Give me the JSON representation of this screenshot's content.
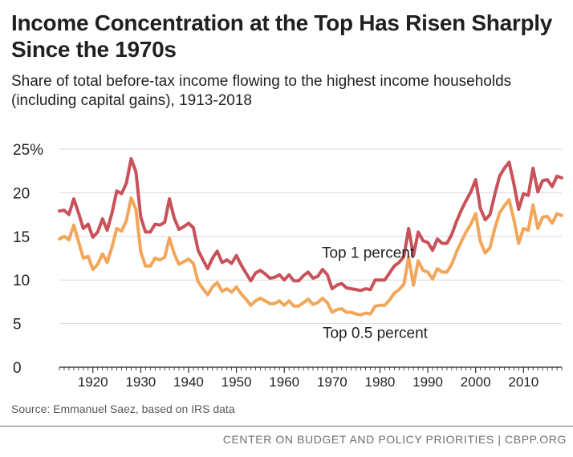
{
  "title": "Income Concentration at the Top Has Risen Sharply Since the 1970s",
  "subtitle": "Share of total before-tax income flowing to the highest income households (including capital gains), 1913-2018",
  "source": "Source: Emmanuel Saez, based on IRS data",
  "footer": "CENTER ON BUDGET AND POLICY PRIORITIES | CBPP.ORG",
  "chart_data": {
    "type": "line",
    "title": "",
    "xlabel": "",
    "ylabel": "",
    "xlim": [
      1913,
      2018
    ],
    "ylim": [
      0,
      25
    ],
    "y_ticks": [
      0,
      5,
      10,
      15,
      20,
      25
    ],
    "y_tick_labels": [
      "0",
      "5",
      "10",
      "15",
      "20",
      "25%"
    ],
    "x_ticks": [
      1920,
      1930,
      1940,
      1950,
      1960,
      1970,
      1980,
      1990,
      2000,
      2010
    ],
    "x_tick_labels": [
      "1920",
      "1930",
      "1940",
      "1950",
      "1960",
      "1970",
      "1980",
      "1990",
      "2000",
      "2010"
    ],
    "grid": true,
    "colors": {
      "top1": "#c8525a",
      "top05": "#f2a65a",
      "grid": "#d9d9d9",
      "axis": "#231f20"
    },
    "x": [
      1913,
      1914,
      1915,
      1916,
      1917,
      1918,
      1919,
      1920,
      1921,
      1922,
      1923,
      1924,
      1925,
      1926,
      1927,
      1928,
      1929,
      1930,
      1931,
      1932,
      1933,
      1934,
      1935,
      1936,
      1937,
      1938,
      1939,
      1940,
      1941,
      1942,
      1943,
      1944,
      1945,
      1946,
      1947,
      1948,
      1949,
      1950,
      1951,
      1952,
      1953,
      1954,
      1955,
      1956,
      1957,
      1958,
      1959,
      1960,
      1961,
      1962,
      1963,
      1964,
      1965,
      1966,
      1967,
      1968,
      1969,
      1970,
      1971,
      1972,
      1973,
      1974,
      1975,
      1976,
      1977,
      1978,
      1979,
      1980,
      1981,
      1982,
      1983,
      1984,
      1985,
      1986,
      1987,
      1988,
      1989,
      1990,
      1991,
      1992,
      1993,
      1994,
      1995,
      1996,
      1997,
      1998,
      1999,
      2000,
      2001,
      2002,
      2003,
      2004,
      2005,
      2006,
      2007,
      2008,
      2009,
      2010,
      2011,
      2012,
      2013,
      2014,
      2015,
      2016,
      2017,
      2018
    ],
    "series": [
      {
        "name": "Top 1 percent",
        "label": "Top 1 percent",
        "values": [
          17.9,
          18.0,
          17.5,
          19.3,
          17.7,
          15.9,
          16.4,
          14.9,
          15.5,
          17.0,
          15.7,
          17.7,
          20.2,
          19.9,
          21.1,
          23.9,
          22.4,
          17.2,
          15.5,
          15.5,
          16.4,
          16.3,
          16.6,
          19.3,
          17.1,
          15.8,
          16.1,
          16.5,
          16.0,
          13.4,
          12.3,
          11.3,
          12.5,
          13.3,
          12.0,
          12.3,
          11.9,
          12.8,
          11.7,
          10.8,
          9.9,
          10.8,
          11.1,
          10.7,
          10.2,
          10.3,
          10.6,
          10.0,
          10.6,
          9.9,
          9.9,
          10.5,
          10.9,
          10.2,
          10.4,
          11.2,
          10.6,
          9.0,
          9.4,
          9.6,
          9.1,
          9.0,
          8.9,
          8.8,
          9.0,
          8.9,
          10.0,
          10.0,
          10.0,
          10.8,
          11.6,
          12.0,
          12.7,
          15.9,
          12.8,
          15.5,
          14.5,
          14.3,
          13.4,
          14.7,
          14.2,
          14.2,
          15.2,
          16.7,
          18.0,
          19.1,
          20.1,
          21.5,
          18.2,
          16.9,
          17.5,
          19.8,
          21.9,
          22.8,
          23.5,
          21.0,
          18.1,
          19.9,
          19.7,
          22.8,
          20.1,
          21.4,
          21.5,
          20.7,
          21.9,
          21.7
        ]
      },
      {
        "name": "Top 0.5 percent",
        "label": "Top 0.5 percent",
        "values": [
          14.7,
          15.0,
          14.6,
          16.3,
          14.4,
          12.5,
          12.7,
          11.2,
          11.8,
          13.0,
          12.0,
          13.8,
          15.9,
          15.6,
          16.8,
          19.4,
          18.1,
          13.2,
          11.6,
          11.6,
          12.5,
          12.3,
          12.6,
          14.8,
          13.0,
          11.8,
          12.1,
          12.4,
          11.9,
          9.8,
          9.0,
          8.3,
          9.2,
          9.7,
          8.7,
          9.0,
          8.6,
          9.2,
          8.4,
          7.8,
          7.1,
          7.6,
          7.9,
          7.6,
          7.3,
          7.3,
          7.6,
          7.1,
          7.6,
          7.0,
          7.0,
          7.4,
          7.8,
          7.2,
          7.4,
          7.9,
          7.4,
          6.3,
          6.6,
          6.7,
          6.3,
          6.3,
          6.1,
          6.0,
          6.2,
          6.1,
          7.0,
          7.1,
          7.1,
          7.7,
          8.5,
          8.9,
          9.5,
          12.6,
          9.4,
          12.2,
          11.1,
          10.9,
          10.1,
          11.3,
          10.9,
          10.9,
          11.8,
          13.2,
          14.4,
          15.5,
          16.4,
          17.6,
          14.4,
          13.1,
          13.7,
          15.9,
          17.7,
          18.5,
          19.2,
          16.9,
          14.2,
          15.9,
          15.7,
          18.6,
          15.9,
          17.2,
          17.3,
          16.5,
          17.6,
          17.4
        ]
      }
    ]
  }
}
